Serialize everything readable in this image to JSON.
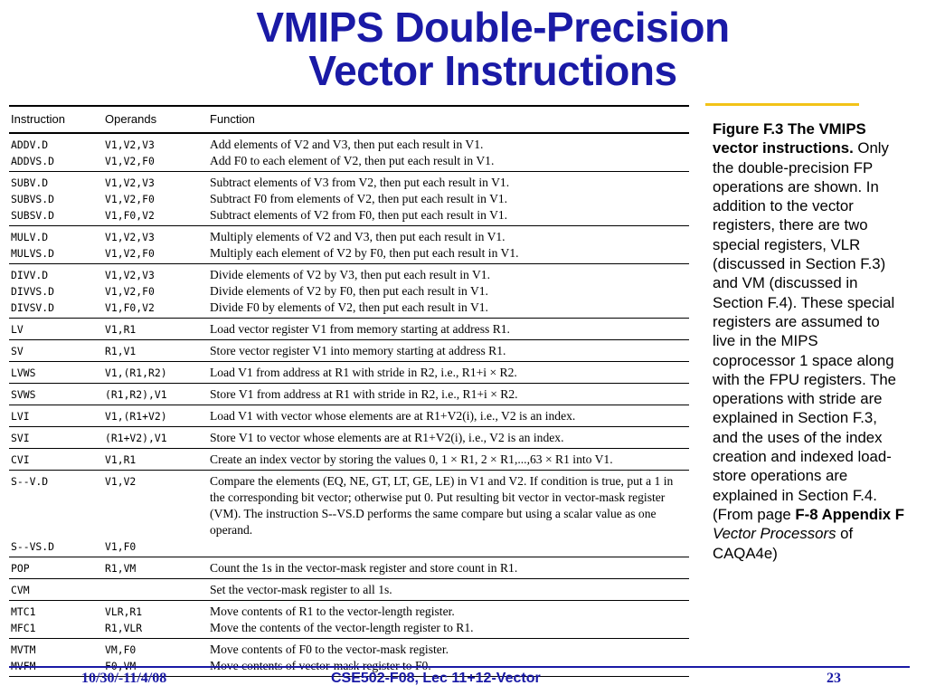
{
  "slide": {
    "title_line1": "VMIPS Double-Precision",
    "title_line2": "Vector Instructions"
  },
  "table": {
    "headers": {
      "instruction": "Instruction",
      "operands": "Operands",
      "function": "Function"
    },
    "groups": [
      [
        {
          "instr": "ADDV.D",
          "ops": "V1,V2,V3",
          "func": "Add elements of V2 and V3, then put each result in V1."
        },
        {
          "instr": "ADDVS.D",
          "ops": "V1,V2,F0",
          "func": "Add F0 to each element of V2, then put each result in V1."
        }
      ],
      [
        {
          "instr": "SUBV.D",
          "ops": "V1,V2,V3",
          "func": "Subtract elements of V3 from V2, then put each result in V1."
        },
        {
          "instr": "SUBVS.D",
          "ops": "V1,V2,F0",
          "func": "Subtract F0 from elements of V2, then put each result in V1."
        },
        {
          "instr": "SUBSV.D",
          "ops": "V1,F0,V2",
          "func": "Subtract elements of V2 from F0, then put each result in V1."
        }
      ],
      [
        {
          "instr": "MULV.D",
          "ops": "V1,V2,V3",
          "func": "Multiply elements of V2 and V3, then put each result in V1."
        },
        {
          "instr": "MULVS.D",
          "ops": "V1,V2,F0",
          "func": "Multiply each element of V2  by F0, then put each result in V1."
        }
      ],
      [
        {
          "instr": "DIVV.D",
          "ops": "V1,V2,V3",
          "func": "Divide elements of V2 by V3, then put each result in V1."
        },
        {
          "instr": "DIVVS.D",
          "ops": "V1,V2,F0",
          "func": "Divide elements of V2 by F0, then put each result in V1."
        },
        {
          "instr": "DIVSV.D",
          "ops": "V1,F0,V2",
          "func": "Divide F0 by elements of V2, then put each result in V1."
        }
      ],
      [
        {
          "instr": "LV",
          "ops": "V1,R1",
          "func": "Load vector register V1 from memory starting at address R1."
        }
      ],
      [
        {
          "instr": "SV",
          "ops": "R1,V1",
          "func": "Store vector register V1 into memory starting at address R1."
        }
      ],
      [
        {
          "instr": "LVWS",
          "ops": "V1,(R1,R2)",
          "func": "Load V1 from address at R1 with stride in R2, i.e., R1+i × R2."
        }
      ],
      [
        {
          "instr": "SVWS",
          "ops": "(R1,R2),V1",
          "func": "Store V1 from address at R1 with stride in R2, i.e., R1+i × R2."
        }
      ],
      [
        {
          "instr": "LVI",
          "ops": "V1,(R1+V2)",
          "func": "Load V1 with vector whose elements are at R1+V2(i), i.e., V2 is an index."
        }
      ],
      [
        {
          "instr": "SVI",
          "ops": "(R1+V2),V1",
          "func": "Store V1 to vector whose elements are at R1+V2(i), i.e., V2 is an index."
        }
      ],
      [
        {
          "instr": "CVI",
          "ops": "V1,R1",
          "func": "Create an index vector by storing the values 0, 1 × R1, 2 × R1,...,63 × R1 into V1."
        }
      ],
      [
        {
          "instr": "S--V.D",
          "ops": "V1,V2",
          "func": "Compare the elements (EQ, NE, GT, LT, GE, LE) in V1 and V2. If condition is true, put a 1 in the corresponding bit vector; otherwise put 0. Put resulting bit vector in vector-mask register (VM). The instruction S--VS.D performs the same compare but using a scalar value as one operand."
        },
        {
          "instr": "S--VS.D",
          "ops": "V1,F0",
          "func": ""
        }
      ],
      [
        {
          "instr": "POP",
          "ops": "R1,VM",
          "func": "Count the 1s in the vector-mask register and store count in R1."
        }
      ],
      [
        {
          "instr": "CVM",
          "ops": "",
          "func": "Set the vector-mask register to all 1s."
        }
      ],
      [
        {
          "instr": "MTC1",
          "ops": "VLR,R1",
          "func": "Move contents of R1 to the vector-length register."
        },
        {
          "instr": "MFC1",
          "ops": "R1,VLR",
          "func": "Move the contents of the vector-length register to R1."
        }
      ],
      [
        {
          "instr": "MVTM",
          "ops": "VM,F0",
          "func": "Move contents of F0 to the vector-mask register."
        },
        {
          "instr": "MVFM",
          "ops": "F0,VM",
          "func": "Move contents of vector-mask register to F0."
        }
      ]
    ]
  },
  "caption": {
    "bold": "Figure F.3 The VMIPS vector instructions.",
    "text": " Only the double-precision FP operations are shown. In addition to the vector registers, there are two special registers, VLR (discussed in Section F.3) and VM (discussed in Section F.4). These special registers are assumed to live in the MIPS coprocessor 1 space along with the FPU registers. The operations with stride are explained in Section F.3, and the uses of the index creation and indexed load-store operations are explained in Section F.4.   (From page ",
    "ref_bold": "F-8 Appendix F",
    "ref_italic": "Vector Processors",
    "ref_end": " of CAQA4e)"
  },
  "footer": {
    "date": "10/30/-11/4/08",
    "course": "CSE502-F08, Lec 11+12-Vector",
    "page": "23"
  },
  "colors": {
    "title": "#1a1aa6",
    "accent_rule": "#f2c318"
  }
}
